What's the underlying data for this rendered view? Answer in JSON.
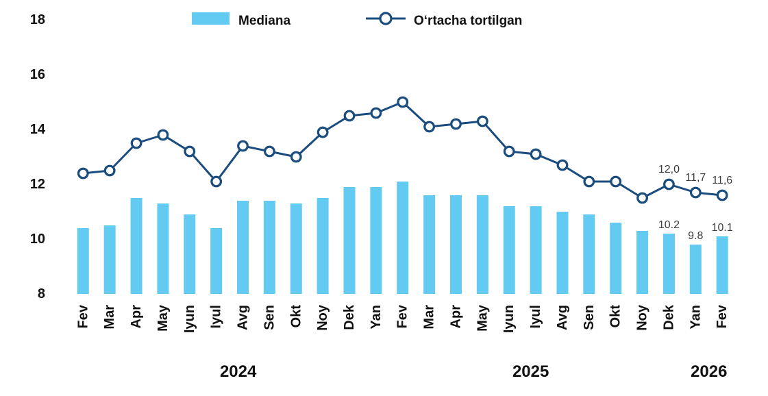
{
  "legend": {
    "bar_label": "Mediana",
    "line_label": "Oʻrtacha tortilgan"
  },
  "colors": {
    "bar": "#63CAF2",
    "line": "#1B4C7E",
    "marker_fill": "#FFFFFF",
    "axis_text": "#111111",
    "data_label_text": "#3C3C3C"
  },
  "chart_data": {
    "type": "bar+line",
    "categories": [
      "Fev",
      "Mar",
      "Apr",
      "May",
      "Iyun",
      "Iyul",
      "Avg",
      "Sen",
      "Okt",
      "Noy",
      "Dek",
      "Yan",
      "Fev",
      "Mar",
      "Apr",
      "May",
      "Iyun",
      "Iyul",
      "Avg",
      "Sen",
      "Okt",
      "Noy",
      "Dek",
      "Yan",
      "Fev"
    ],
    "year_groups": [
      {
        "label": "2024",
        "start": 0,
        "end": 10
      },
      {
        "label": "2025",
        "start": 11,
        "end": 22
      },
      {
        "label": "2026",
        "start": 23,
        "end": 24
      }
    ],
    "series": [
      {
        "name": "Mediana",
        "type": "bar",
        "values": [
          10.4,
          10.5,
          11.5,
          11.3,
          10.9,
          10.4,
          11.4,
          11.4,
          11.3,
          11.5,
          11.9,
          11.9,
          12.1,
          11.6,
          11.6,
          11.6,
          11.2,
          11.2,
          11.0,
          10.9,
          10.6,
          10.3,
          10.2,
          9.8,
          10.1
        ],
        "point_labels": [
          {
            "index": 22,
            "text": "10.2"
          },
          {
            "index": 23,
            "text": "9.8"
          },
          {
            "index": 24,
            "text": "10.1"
          }
        ]
      },
      {
        "name": "Oʻrtacha tortilgan",
        "type": "line",
        "values": [
          12.4,
          12.5,
          13.5,
          13.8,
          13.2,
          12.1,
          13.4,
          13.2,
          13.0,
          13.9,
          14.5,
          14.6,
          15.0,
          14.1,
          14.2,
          14.3,
          13.2,
          13.1,
          12.7,
          12.1,
          12.1,
          11.5,
          12.0,
          11.7,
          11.6
        ],
        "point_labels": [
          {
            "index": 22,
            "text": "12,0"
          },
          {
            "index": 23,
            "text": "11,7"
          },
          {
            "index": 24,
            "text": "11,6"
          }
        ]
      }
    ],
    "yticks": [
      8,
      10,
      12,
      14,
      16,
      18
    ],
    "ylim": [
      8,
      18
    ],
    "grid": false,
    "legend_position": "top"
  }
}
